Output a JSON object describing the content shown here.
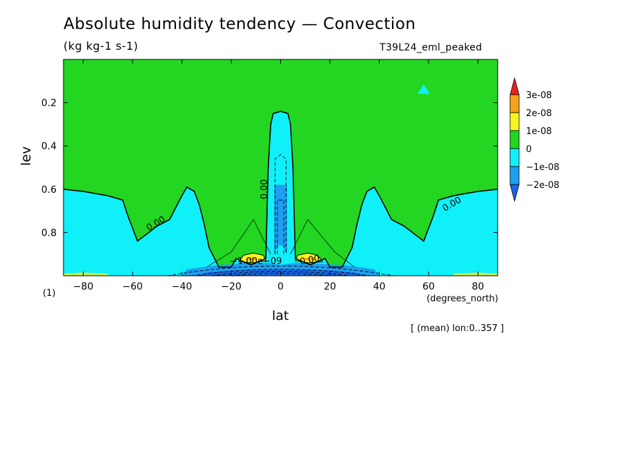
{
  "chart_data": {
    "type": "contour",
    "title": "Absolute humidity tendency — Convection",
    "units": "(kg kg-1 s-1)",
    "run_label": "T39L24_eml_peaked",
    "xlabel": "lat",
    "x_unit_label": "(degrees_north)",
    "ylabel": "lev",
    "y_unit_label": "(1)",
    "mean_note": "[ (mean) lon:0..357 ]",
    "xlim": [
      -88,
      88
    ],
    "ylim": [
      1.0,
      0.0
    ],
    "xticks": [
      -80,
      -60,
      -40,
      -20,
      0,
      20,
      40,
      60,
      80
    ],
    "yticks": [
      0.2,
      0.4,
      0.6,
      0.8
    ],
    "colorbar": {
      "labels": [
        "3e-08",
        "2e-08",
        "1e-08",
        "0",
        "−1e-08",
        "−2e-08"
      ],
      "colors": [
        "#e8231c",
        "#f7a11a",
        "#f5f521",
        "#22d622",
        "#10f0f8",
        "#1e9ff0",
        "#1966e3"
      ]
    },
    "contour_labels": [
      "0.00",
      "0.00",
      "0.00",
      "−1.00e−09",
      "0.00"
    ],
    "regions": {
      "zero_line_lev_at_lat": {
        "lat": [
          -88,
          -80,
          -70,
          -64,
          -62,
          -58,
          -50,
          -45,
          -40,
          -38,
          -35,
          -33,
          -31,
          -29,
          -25,
          -20,
          -18,
          -12,
          -6,
          -5,
          -4,
          -3,
          0,
          3,
          4,
          5,
          6,
          12,
          18,
          20,
          25,
          29,
          31,
          33,
          35,
          38,
          40,
          45,
          50,
          58,
          62,
          64,
          70,
          80,
          88
        ],
        "lev": [
          0.6,
          0.61,
          0.63,
          0.65,
          0.72,
          0.84,
          0.77,
          0.74,
          0.63,
          0.59,
          0.61,
          0.67,
          0.76,
          0.87,
          0.96,
          0.96,
          0.92,
          0.95,
          0.92,
          0.5,
          0.3,
          0.25,
          0.24,
          0.25,
          0.3,
          0.5,
          0.92,
          0.95,
          0.92,
          0.96,
          0.96,
          0.87,
          0.76,
          0.67,
          0.61,
          0.59,
          0.63,
          0.74,
          0.77,
          0.84,
          0.72,
          0.65,
          0.63,
          0.61,
          0.6
        ]
      },
      "below_minus_1e08_center_lev_range": [
        0.58,
        0.86
      ],
      "surface_minus_2e08_lat_range": [
        -34,
        34
      ],
      "positive_maxima_lat": [
        -12,
        12
      ],
      "marker": {
        "lat": 58,
        "lev": 0.14,
        "color": "#10f0f8"
      }
    }
  }
}
